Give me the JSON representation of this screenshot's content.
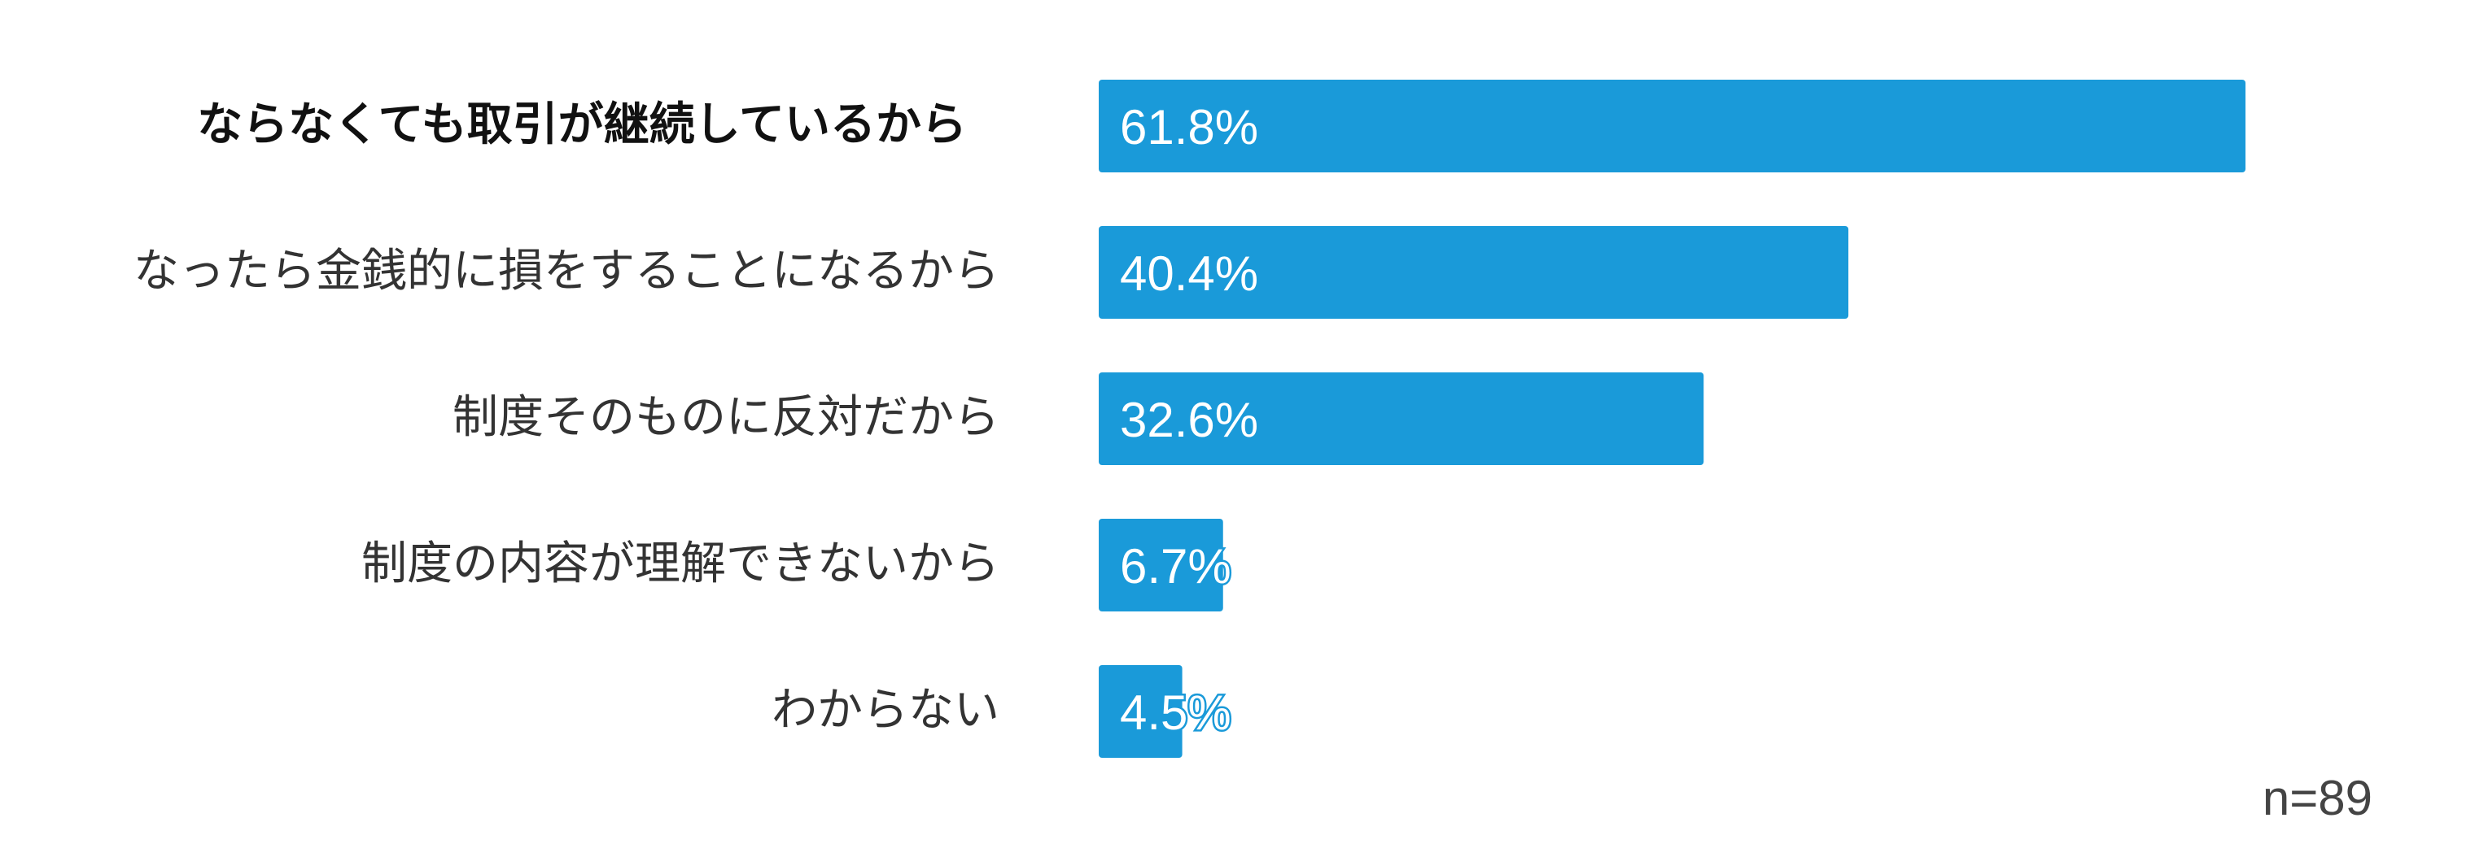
{
  "chart_data": {
    "type": "bar",
    "orientation": "horizontal",
    "categories": [
      "ならなくても取引が継続しているから",
      "なったら金銭的に損をすることになるから",
      "制度そのものに反対だから",
      "制度の内容が理解できないから",
      "わからない"
    ],
    "values": [
      61.8,
      40.4,
      32.6,
      6.7,
      4.5
    ],
    "value_labels": [
      "61.8%",
      "40.4%",
      "32.6%",
      "6.7%",
      "4.5%"
    ],
    "unit": "%",
    "xlim": [
      0,
      100
    ],
    "grid": false,
    "legend": "none",
    "title": "",
    "xlabel": "",
    "ylabel": "",
    "note": "n=89",
    "bar_color": "#1a9ad9"
  }
}
